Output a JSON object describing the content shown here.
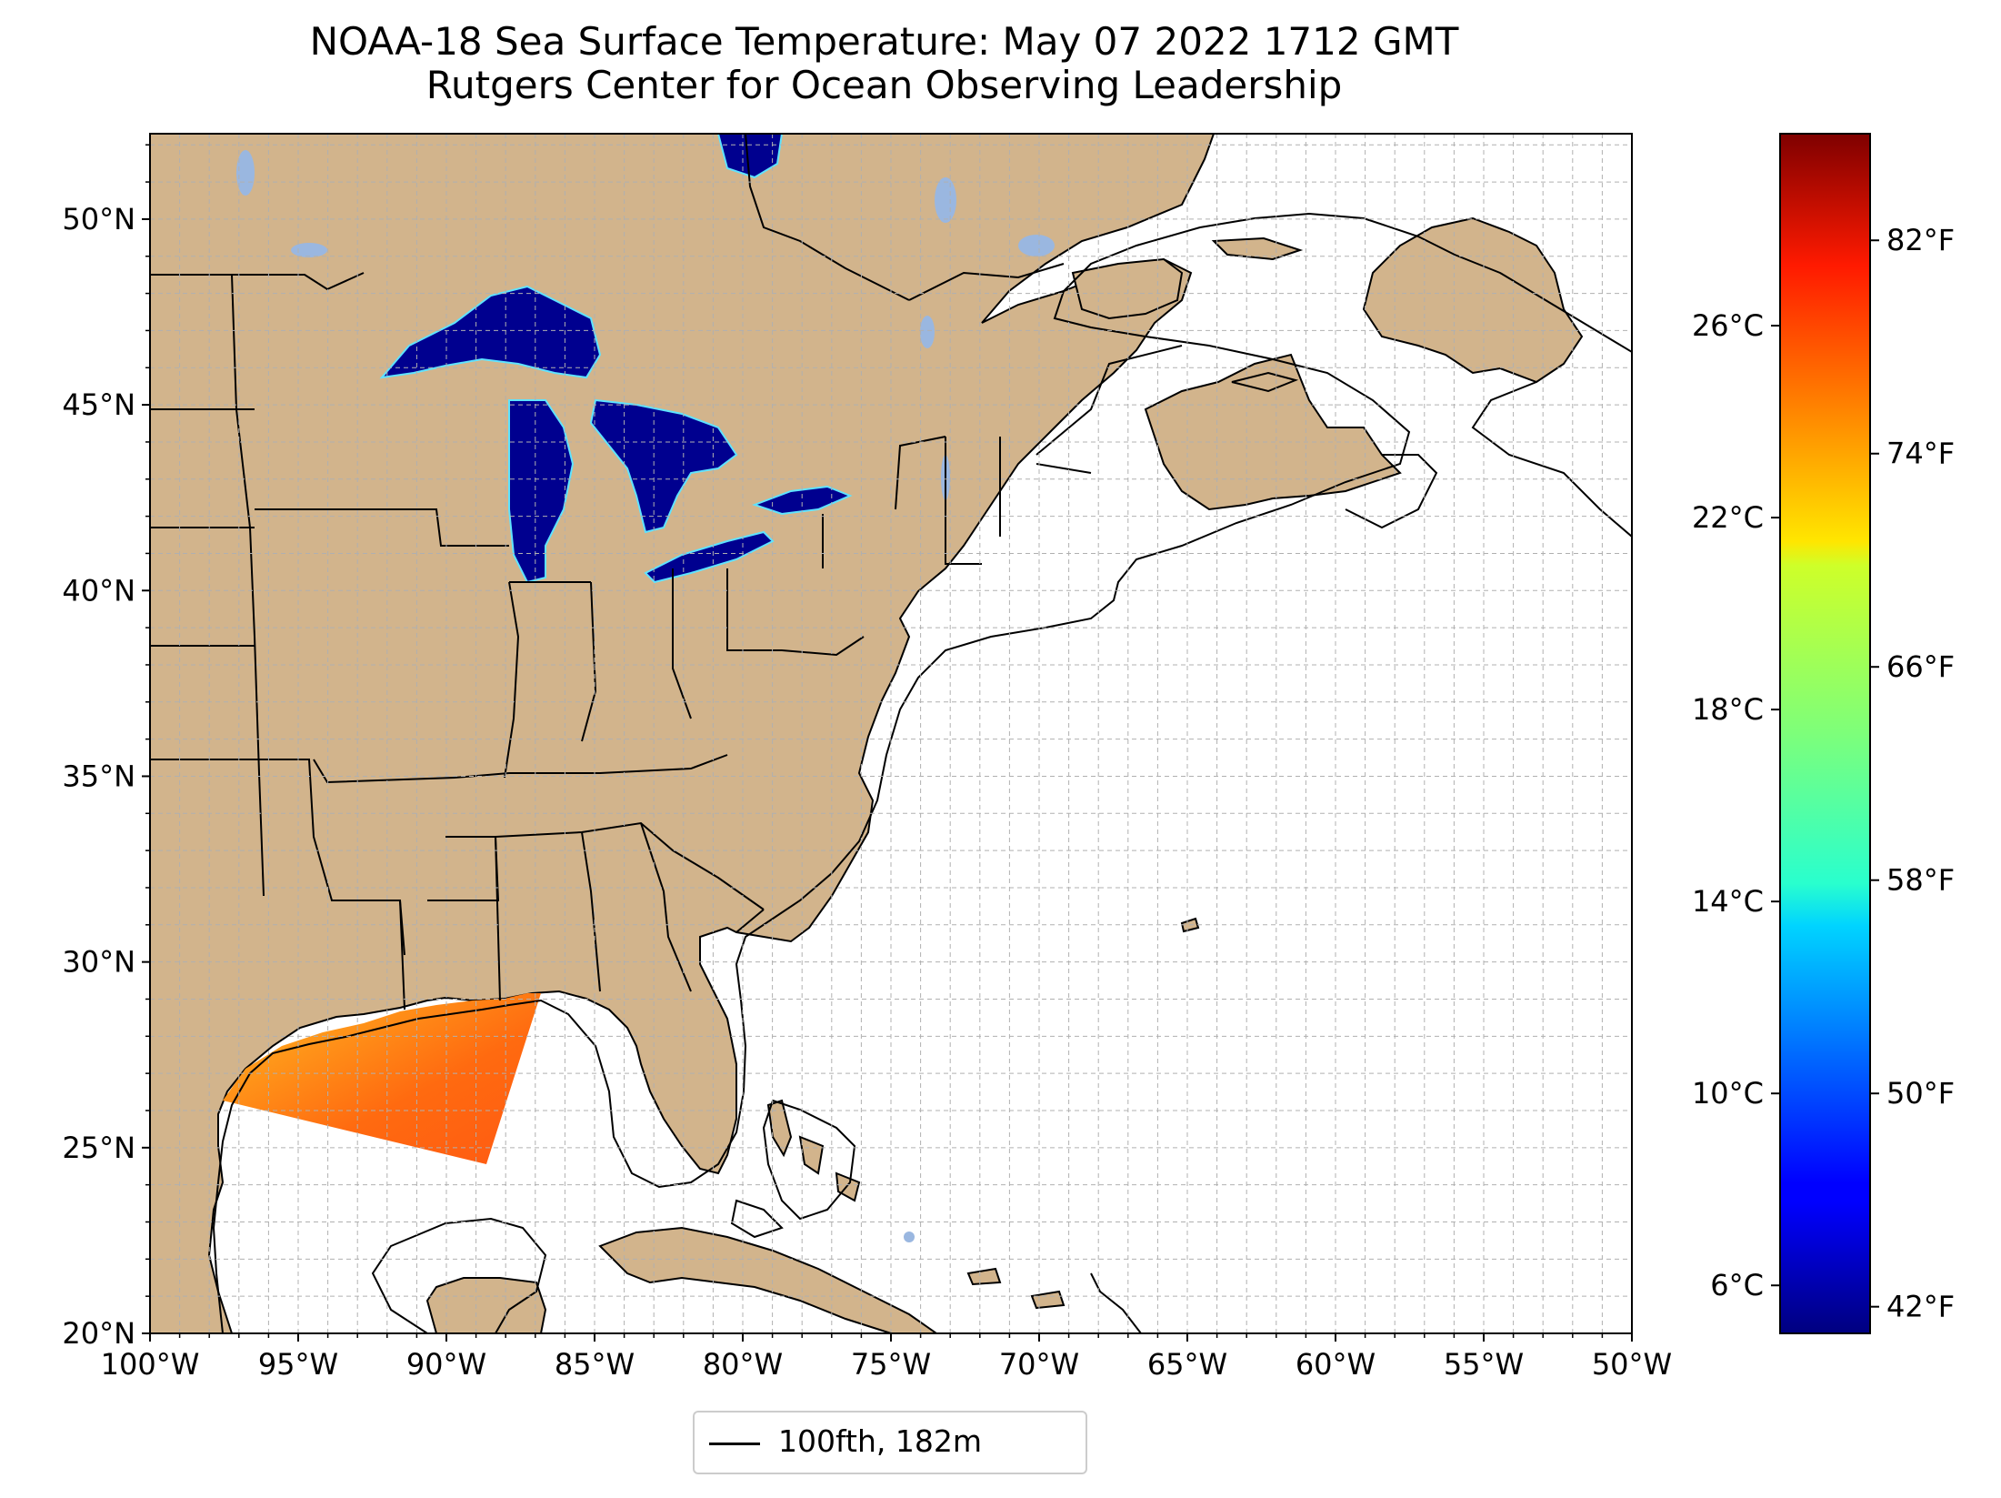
{
  "title": "NOAA-18 Sea Surface Temperature: May 07 2022 1712 GMT",
  "subtitle": "Rutgers Center for Ocean Observing Leadership",
  "map": {
    "extent": {
      "lon": [
        -100,
        -50
      ],
      "lat": [
        20,
        52.3
      ]
    },
    "lat_ticks": [
      {
        "lat": 20,
        "label": "20°N"
      },
      {
        "lat": 25,
        "label": "25°N"
      },
      {
        "lat": 30,
        "label": "30°N"
      },
      {
        "lat": 35,
        "label": "35°N"
      },
      {
        "lat": 40,
        "label": "40°N"
      },
      {
        "lat": 45,
        "label": "45°N"
      },
      {
        "lat": 50,
        "label": "50°N"
      }
    ],
    "lon_ticks": [
      {
        "lon": -100,
        "label": "100°W"
      },
      {
        "lon": -95,
        "label": "95°W"
      },
      {
        "lon": -90,
        "label": "90°W"
      },
      {
        "lon": -85,
        "label": "85°W"
      },
      {
        "lon": -80,
        "label": "80°W"
      },
      {
        "lon": -75,
        "label": "75°W"
      },
      {
        "lon": -70,
        "label": "70°W"
      },
      {
        "lon": -65,
        "label": "65°W"
      },
      {
        "lon": -60,
        "label": "60°W"
      },
      {
        "lon": -55,
        "label": "55°W"
      },
      {
        "lon": -50,
        "label": "50°W"
      }
    ],
    "minor_grid_step_deg": 1,
    "colors": {
      "land": "#d2b48c",
      "lakes": "#9ab7e0",
      "ocean": "#ffffff",
      "grid": "#b0b0b0"
    }
  },
  "colorbar": {
    "colormap": "jet",
    "range_c": [
      5.0,
      30.0
    ],
    "celsius_ticks": [
      {
        "value": 6,
        "label": "6°C"
      },
      {
        "value": 10,
        "label": "10°C"
      },
      {
        "value": 14,
        "label": "14°C"
      },
      {
        "value": 18,
        "label": "18°C"
      },
      {
        "value": 22,
        "label": "22°C"
      },
      {
        "value": 26,
        "label": "26°C"
      }
    ],
    "fahrenheit_ticks": [
      {
        "value": 42,
        "label": "42°F"
      },
      {
        "value": 50,
        "label": "50°F"
      },
      {
        "value": 58,
        "label": "58°F"
      },
      {
        "value": 66,
        "label": "66°F"
      },
      {
        "value": 74,
        "label": "74°F"
      },
      {
        "value": 82,
        "label": "82°F"
      }
    ]
  },
  "legend": {
    "label": "100fth, 182m",
    "line_color": "#000000"
  }
}
